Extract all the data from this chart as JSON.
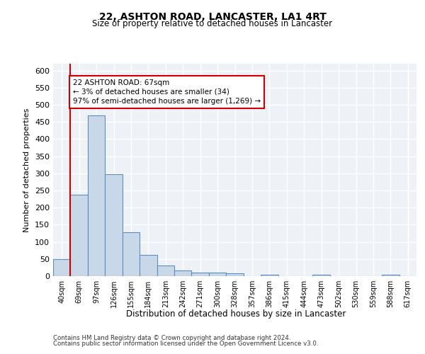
{
  "title1": "22, ASHTON ROAD, LANCASTER, LA1 4RT",
  "title2": "Size of property relative to detached houses in Lancaster",
  "xlabel": "Distribution of detached houses by size in Lancaster",
  "ylabel": "Number of detached properties",
  "categories": [
    "40sqm",
    "69sqm",
    "97sqm",
    "126sqm",
    "155sqm",
    "184sqm",
    "213sqm",
    "242sqm",
    "271sqm",
    "300sqm",
    "328sqm",
    "357sqm",
    "386sqm",
    "415sqm",
    "444sqm",
    "473sqm",
    "502sqm",
    "530sqm",
    "559sqm",
    "588sqm",
    "617sqm"
  ],
  "values": [
    50,
    237,
    470,
    298,
    128,
    63,
    30,
    16,
    10,
    11,
    9,
    0,
    5,
    0,
    0,
    5,
    0,
    0,
    0,
    5,
    0
  ],
  "bar_color": "#c8d8e8",
  "bar_edgecolor": "#5a8fc0",
  "vline_color": "#cc0000",
  "vline_x_index": 1,
  "annotation_text": "22 ASHTON ROAD: 67sqm\n← 3% of detached houses are smaller (34)\n97% of semi-detached houses are larger (1,269) →",
  "annotation_box_color": "#cc0000",
  "annotation_text_color": "#000000",
  "ylim": [
    0,
    620
  ],
  "yticks": [
    0,
    50,
    100,
    150,
    200,
    250,
    300,
    350,
    400,
    450,
    500,
    550,
    600
  ],
  "bg_color": "#eef2f7",
  "grid_color": "#ffffff",
  "footer1": "Contains HM Land Registry data © Crown copyright and database right 2024.",
  "footer2": "Contains public sector information licensed under the Open Government Licence v3.0."
}
